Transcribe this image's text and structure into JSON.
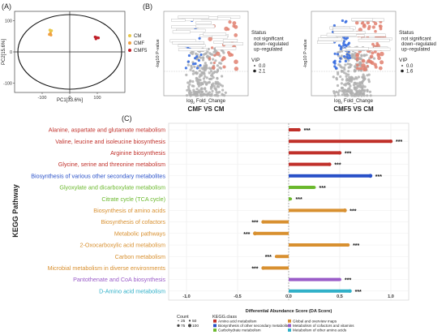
{
  "panel_labels": {
    "a": "(A)",
    "b": "(B)",
    "c": "(C)"
  },
  "colors": {
    "CM": "#e8c84a",
    "CMF": "#f0a040",
    "CMF5": "#c0202a",
    "amino_acid": "#c0302a",
    "secondary": "#2850c8",
    "carbohydrate": "#6ab82c",
    "global": "#d89030",
    "cofactors": "#9a5cc8",
    "other_amino": "#30b0c8",
    "down": "#3a6ee0",
    "up": "#e08070",
    "ns": "#b0b0b0"
  },
  "chart_data": [
    {
      "type": "scatter",
      "xlabel": "PC1[33.6%]",
      "ylabel": "PC2[15.6%]",
      "xlim": [
        -200,
        200
      ],
      "ylim": [
        -130,
        130
      ],
      "xticks": [
        "-100",
        "0",
        "100"
      ],
      "yticks": [
        "100",
        "0",
        "-100"
      ],
      "xtick_values": [
        -100,
        0,
        100
      ],
      "ytick_values": [
        100,
        0,
        -100
      ],
      "series": [
        {
          "name": "CM",
          "color_key": "CM",
          "points": [
            [
              -72,
              70
            ],
            [
              -66,
              68
            ],
            [
              -69,
              66
            ]
          ]
        },
        {
          "name": "CMF",
          "color_key": "CMF",
          "points": [
            [
              -74,
              56
            ],
            [
              -68,
              54
            ],
            [
              -70,
              59
            ]
          ]
        },
        {
          "name": "CMF5",
          "color_key": "CMF5",
          "points": [
            [
              92,
              48
            ],
            [
              98,
              46
            ],
            [
              95,
              42
            ],
            [
              104,
              45
            ]
          ]
        }
      ]
    },
    {
      "type": "scatter",
      "title": "CMF VS CM",
      "xlabel_main": "log",
      "xlabel_sub": "2",
      "xlabel_rest": " Fold_Change",
      "ylabel": "-log10 P-value",
      "legend": {
        "status_title": "Status",
        "status": [
          "not significant",
          "down−regulated",
          "up−regulated"
        ],
        "vip_title": "VIP",
        "vip": [
          "0.0",
          "2.1"
        ]
      }
    },
    {
      "type": "scatter",
      "title": "CMF5 VS CM",
      "xlabel_main": "log",
      "xlabel_sub": "2",
      "xlabel_rest": " Fold_Change",
      "ylabel": "-log10 P-value",
      "legend": {
        "status_title": "Status",
        "status": [
          "not significant",
          "down−regulated",
          "up−regulated"
        ],
        "vip_title": "VIP",
        "vip": [
          "0.0",
          "1.6"
        ]
      }
    },
    {
      "type": "bar",
      "orientation": "horizontal",
      "ylabel": "KEGG Pathway",
      "xlabel": "Differential Abundance Score (DA Score)",
      "xlim": [
        -1.0,
        1.0
      ],
      "xticks": [
        "-1.0",
        "-0.5",
        "0.0",
        "0.5",
        "1.0"
      ],
      "xtick_values": [
        -1.0,
        -0.5,
        0.0,
        0.5,
        1.0
      ],
      "significance": "***",
      "categories": [
        "Alanine, aspartate and glutamate metabolism",
        "Valine, leucine and isoleucine biosynthesis",
        "Arginine biosynthesis",
        "Glycine, serine and threonine metabolism",
        "Biosynthesis of various other secondary metabolites",
        "Glyoxylate and dicarboxylate metabolism",
        "Citrate cycle (TCA cycle)",
        "Biosynthesis of amino acids",
        "Biosynthesis of cofactors",
        "Metabolic pathways",
        "2-Oxocarboxylic acid metabolism",
        "Carbon metabolism",
        "Microbial metabolism in diverse environments",
        "Pantothenate and CoA biosynthesis",
        "D-Amino acid metabolism"
      ],
      "values": [
        0.1,
        1.0,
        0.5,
        0.4,
        0.8,
        0.25,
        0.02,
        0.55,
        -0.25,
        -0.33,
        0.58,
        -0.12,
        -0.25,
        0.5,
        0.6
      ],
      "counts": [
        75,
        75,
        75,
        75,
        100,
        50,
        25,
        100,
        75,
        100,
        75,
        50,
        75,
        50,
        75
      ],
      "class_keys": [
        "amino_acid",
        "amino_acid",
        "amino_acid",
        "amino_acid",
        "secondary",
        "carbohydrate",
        "carbohydrate",
        "global",
        "global",
        "global",
        "global",
        "global",
        "global",
        "cofactors",
        "other_amino"
      ],
      "legend": {
        "count_title": "Count",
        "counts": [
          "25",
          "50",
          "75",
          "100"
        ],
        "class_title": "KEGG.class",
        "classes": [
          {
            "key": "amino_acid",
            "label": "Amino acid metabolism"
          },
          {
            "key": "secondary",
            "label": "Biosynthesis of other secondary metabolites"
          },
          {
            "key": "carbohydrate",
            "label": "Carbohydrate metabolism"
          },
          {
            "key": "global",
            "label": "Global and overview maps"
          },
          {
            "key": "cofactors",
            "label": "Metabolism of cofactors and vitamins"
          },
          {
            "key": "other_amino",
            "label": "Metabolism of other amino acids"
          }
        ]
      }
    }
  ]
}
